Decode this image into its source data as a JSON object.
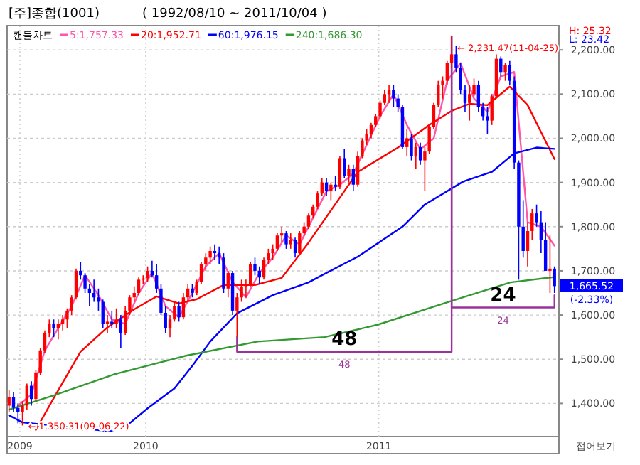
{
  "chart_data": {
    "type": "candlestick",
    "title": "[주]종합(1001)",
    "subtitle": "( 1992/08/10 ~ 2011/10/04 )",
    "legend_title": "캔들차트",
    "legend": "top left",
    "grid": true,
    "xlim": [
      "2009-05-29",
      "2011-10-10"
    ],
    "ylim": [
      1325,
      2255
    ],
    "xticks": [
      {
        "value": "2009-06-18",
        "label": "2009"
      },
      {
        "value": "2010-01-01",
        "label": "2010"
      },
      {
        "value": "2011-01-01",
        "label": "2011"
      }
    ],
    "yticks": [
      {
        "value": 1400,
        "label": "1,400.00"
      },
      {
        "value": 1500,
        "label": "1,500.00"
      },
      {
        "value": 1600,
        "label": "1,600.00"
      },
      {
        "value": 1700,
        "label": "1,700.00"
      },
      {
        "value": 1800,
        "label": "1,800.00"
      },
      {
        "value": 1900,
        "label": "1,900.00"
      },
      {
        "value": 2000,
        "label": "2,000.00"
      },
      {
        "value": 2100,
        "label": "2,100.00"
      },
      {
        "value": 2200,
        "label": "2,200.00"
      }
    ],
    "x": [
      "2009-06-01",
      "2009-06-08",
      "2009-06-15",
      "2009-06-22",
      "2009-06-29",
      "2009-07-06",
      "2009-07-13",
      "2009-07-20",
      "2009-07-27",
      "2009-08-03",
      "2009-08-10",
      "2009-08-17",
      "2009-08-24",
      "2009-08-31",
      "2009-09-07",
      "2009-09-14",
      "2009-09-21",
      "2009-09-28",
      "2009-10-05",
      "2009-10-12",
      "2009-10-19",
      "2009-10-26",
      "2009-11-02",
      "2009-11-09",
      "2009-11-16",
      "2009-11-23",
      "2009-11-30",
      "2009-12-07",
      "2009-12-14",
      "2009-12-21",
      "2009-12-28",
      "2010-01-04",
      "2010-01-11",
      "2010-01-18",
      "2010-01-25",
      "2010-02-01",
      "2010-02-08",
      "2010-02-15",
      "2010-02-22",
      "2010-03-01",
      "2010-03-08",
      "2010-03-15",
      "2010-03-22",
      "2010-03-29",
      "2010-04-05",
      "2010-04-12",
      "2010-04-19",
      "2010-04-26",
      "2010-05-03",
      "2010-05-10",
      "2010-05-17",
      "2010-05-24",
      "2010-05-31",
      "2010-06-07",
      "2010-06-14",
      "2010-06-21",
      "2010-06-28",
      "2010-07-05",
      "2010-07-12",
      "2010-07-19",
      "2010-07-26",
      "2010-08-02",
      "2010-08-09",
      "2010-08-16",
      "2010-08-23",
      "2010-08-30",
      "2010-09-06",
      "2010-09-13",
      "2010-09-20",
      "2010-09-27",
      "2010-10-04",
      "2010-10-11",
      "2010-10-18",
      "2010-10-25",
      "2010-11-01",
      "2010-11-08",
      "2010-11-15",
      "2010-11-22",
      "2010-11-29",
      "2010-12-06",
      "2010-12-13",
      "2010-12-20",
      "2010-12-27",
      "2011-01-03",
      "2011-01-10",
      "2011-01-17",
      "2011-01-24",
      "2011-01-31",
      "2011-02-07",
      "2011-02-14",
      "2011-02-21",
      "2011-02-28",
      "2011-03-07",
      "2011-03-14",
      "2011-03-21",
      "2011-03-28",
      "2011-04-04",
      "2011-04-11",
      "2011-04-18",
      "2011-04-25",
      "2011-05-02",
      "2011-05-09",
      "2011-05-16",
      "2011-05-23",
      "2011-05-30",
      "2011-06-06",
      "2011-06-13",
      "2011-06-20",
      "2011-06-27",
      "2011-07-04",
      "2011-07-11",
      "2011-07-18",
      "2011-07-25",
      "2011-08-01",
      "2011-08-08",
      "2011-08-15",
      "2011-08-22",
      "2011-08-29",
      "2011-09-05",
      "2011-09-12",
      "2011-09-19",
      "2011-09-26",
      "2011-10-03"
    ],
    "ohlc": [
      [
        1395,
        1430,
        1380,
        1415
      ],
      [
        1415,
        1425,
        1380,
        1390
      ],
      [
        1390,
        1400,
        1355,
        1380
      ],
      [
        1380,
        1405,
        1350,
        1395
      ],
      [
        1395,
        1445,
        1385,
        1440
      ],
      [
        1440,
        1450,
        1395,
        1410
      ],
      [
        1410,
        1475,
        1405,
        1470
      ],
      [
        1470,
        1525,
        1465,
        1520
      ],
      [
        1520,
        1565,
        1515,
        1560
      ],
      [
        1560,
        1590,
        1550,
        1580
      ],
      [
        1580,
        1590,
        1550,
        1570
      ],
      [
        1570,
        1590,
        1545,
        1580
      ],
      [
        1580,
        1600,
        1565,
        1590
      ],
      [
        1590,
        1615,
        1570,
        1610
      ],
      [
        1610,
        1645,
        1600,
        1640
      ],
      [
        1640,
        1705,
        1635,
        1700
      ],
      [
        1700,
        1720,
        1680,
        1690
      ],
      [
        1690,
        1695,
        1650,
        1660
      ],
      [
        1660,
        1670,
        1620,
        1650
      ],
      [
        1650,
        1680,
        1630,
        1640
      ],
      [
        1640,
        1660,
        1610,
        1630
      ],
      [
        1630,
        1635,
        1570,
        1580
      ],
      [
        1580,
        1600,
        1560,
        1585
      ],
      [
        1585,
        1610,
        1570,
        1580
      ],
      [
        1580,
        1615,
        1570,
        1590
      ],
      [
        1590,
        1600,
        1525,
        1560
      ],
      [
        1560,
        1620,
        1555,
        1610
      ],
      [
        1610,
        1645,
        1600,
        1640
      ],
      [
        1640,
        1665,
        1630,
        1650
      ],
      [
        1650,
        1685,
        1645,
        1680
      ],
      [
        1680,
        1690,
        1670,
        1683
      ],
      [
        1683,
        1710,
        1675,
        1700
      ],
      [
        1700,
        1723,
        1685,
        1690
      ],
      [
        1690,
        1715,
        1650,
        1660
      ],
      [
        1660,
        1670,
        1600,
        1605
      ],
      [
        1605,
        1620,
        1560,
        1570
      ],
      [
        1570,
        1600,
        1550,
        1590
      ],
      [
        1590,
        1630,
        1585,
        1620
      ],
      [
        1620,
        1630,
        1585,
        1595
      ],
      [
        1595,
        1650,
        1590,
        1640
      ],
      [
        1640,
        1670,
        1630,
        1660
      ],
      [
        1660,
        1670,
        1640,
        1650
      ],
      [
        1650,
        1680,
        1645,
        1675
      ],
      [
        1675,
        1720,
        1670,
        1715
      ],
      [
        1715,
        1740,
        1700,
        1730
      ],
      [
        1730,
        1755,
        1715,
        1745
      ],
      [
        1745,
        1760,
        1725,
        1740
      ],
      [
        1740,
        1755,
        1715,
        1730
      ],
      [
        1730,
        1740,
        1650,
        1660
      ],
      [
        1660,
        1700,
        1640,
        1695
      ],
      [
        1695,
        1700,
        1600,
        1610
      ],
      [
        1610,
        1650,
        1550,
        1640
      ],
      [
        1640,
        1680,
        1630,
        1665
      ],
      [
        1665,
        1680,
        1640,
        1670
      ],
      [
        1670,
        1720,
        1665,
        1715
      ],
      [
        1715,
        1730,
        1690,
        1700
      ],
      [
        1700,
        1710,
        1670,
        1685
      ],
      [
        1685,
        1730,
        1680,
        1725
      ],
      [
        1725,
        1750,
        1715,
        1740
      ],
      [
        1740,
        1760,
        1725,
        1750
      ],
      [
        1750,
        1785,
        1745,
        1780
      ],
      [
        1780,
        1800,
        1765,
        1785
      ],
      [
        1785,
        1790,
        1750,
        1760
      ],
      [
        1760,
        1785,
        1750,
        1770
      ],
      [
        1770,
        1775,
        1730,
        1740
      ],
      [
        1740,
        1790,
        1735,
        1785
      ],
      [
        1785,
        1810,
        1780,
        1800
      ],
      [
        1800,
        1830,
        1795,
        1825
      ],
      [
        1825,
        1850,
        1820,
        1845
      ],
      [
        1845,
        1880,
        1840,
        1875
      ],
      [
        1875,
        1910,
        1870,
        1900
      ],
      [
        1900,
        1910,
        1870,
        1880
      ],
      [
        1880,
        1900,
        1860,
        1895
      ],
      [
        1895,
        1915,
        1880,
        1890
      ],
      [
        1890,
        1960,
        1885,
        1955
      ],
      [
        1955,
        1975,
        1910,
        1915
      ],
      [
        1915,
        1940,
        1900,
        1930
      ],
      [
        1930,
        1940,
        1880,
        1895
      ],
      [
        1895,
        1970,
        1890,
        1960
      ],
      [
        1960,
        2000,
        1955,
        1995
      ],
      [
        1995,
        2020,
        1985,
        2010
      ],
      [
        2010,
        2035,
        2000,
        2030
      ],
      [
        2030,
        2055,
        2025,
        2050
      ],
      [
        2050,
        2085,
        2045,
        2080
      ],
      [
        2080,
        2110,
        2075,
        2100
      ],
      [
        2100,
        2120,
        2080,
        2110
      ],
      [
        2110,
        2120,
        2070,
        2090
      ],
      [
        2090,
        2100,
        2060,
        2070
      ],
      [
        2070,
        2075,
        1975,
        1980
      ],
      [
        1980,
        2020,
        1960,
        2000
      ],
      [
        2000,
        2010,
        1950,
        1960
      ],
      [
        1960,
        1990,
        1930,
        1980
      ],
      [
        1980,
        1990,
        1940,
        1950
      ],
      [
        1950,
        1980,
        1880,
        1970
      ],
      [
        1970,
        2030,
        1965,
        2025
      ],
      [
        2025,
        2080,
        2020,
        2075
      ],
      [
        2075,
        2130,
        2070,
        2120
      ],
      [
        2120,
        2140,
        2090,
        2130
      ],
      [
        2130,
        2175,
        2120,
        2170
      ],
      [
        2170,
        2231.47,
        2160,
        2190
      ],
      [
        2190,
        2210,
        2150,
        2160
      ],
      [
        2160,
        2170,
        2100,
        2110
      ],
      [
        2110,
        2120,
        2060,
        2080
      ],
      [
        2080,
        2120,
        2040,
        2100
      ],
      [
        2100,
        2135,
        2095,
        2120
      ],
      [
        2120,
        2130,
        2060,
        2070
      ],
      [
        2070,
        2080,
        2040,
        2050
      ],
      [
        2050,
        2070,
        2010,
        2040
      ],
      [
        2040,
        2100,
        2030,
        2095
      ],
      [
        2095,
        2190,
        2090,
        2180
      ],
      [
        2180,
        2185,
        2140,
        2150
      ],
      [
        2150,
        2170,
        2130,
        2165
      ],
      [
        2165,
        2175,
        2120,
        2130
      ],
      [
        2130,
        2140,
        1930,
        1945
      ],
      [
        1945,
        1950,
        1680,
        1800
      ],
      [
        1800,
        1860,
        1730,
        1745
      ],
      [
        1745,
        1810,
        1710,
        1790
      ],
      [
        1790,
        1840,
        1770,
        1830
      ],
      [
        1830,
        1850,
        1800,
        1810
      ],
      [
        1810,
        1835,
        1740,
        1770
      ],
      [
        1770,
        1810,
        1700,
        1700
      ],
      [
        1700,
        1780,
        1650,
        1705
      ],
      [
        1705,
        1710,
        1650,
        1665.52
      ]
    ],
    "series": [
      {
        "type": "line",
        "name": "5:1,757.33",
        "color": "#ff55aa",
        "x": [
          "2009-06-15",
          "2009-07-06",
          "2009-07-27",
          "2009-08-17",
          "2009-09-07",
          "2009-09-28",
          "2009-10-19",
          "2009-11-09",
          "2009-11-30",
          "2009-12-21",
          "2010-01-11",
          "2010-02-01",
          "2010-02-22",
          "2010-03-15",
          "2010-04-05",
          "2010-04-26",
          "2010-05-17",
          "2010-06-07",
          "2010-06-28",
          "2010-07-19",
          "2010-08-09",
          "2010-08-30",
          "2010-09-20",
          "2010-10-11",
          "2010-11-01",
          "2010-11-22",
          "2010-12-13",
          "2011-01-03",
          "2011-01-24",
          "2011-02-14",
          "2011-03-07",
          "2011-03-28",
          "2011-04-18",
          "2011-05-09",
          "2011-05-30",
          "2011-06-20",
          "2011-07-11",
          "2011-08-01",
          "2011-08-22",
          "2011-09-12",
          "2011-10-03"
        ],
        "values": [
          1395,
          1420,
          1520,
          1570,
          1620,
          1690,
          1645,
          1590,
          1580,
          1650,
          1695,
          1620,
          1595,
          1650,
          1710,
          1740,
          1675,
          1640,
          1695,
          1730,
          1780,
          1760,
          1820,
          1880,
          1895,
          1920,
          1985,
          2050,
          2100,
          2030,
          1975,
          2000,
          2130,
          2170,
          2090,
          2060,
          2140,
          2150,
          1810,
          1800,
          1757
        ]
      },
      {
        "type": "line",
        "name": "20:1,952.71",
        "color": "#ff0000",
        "x": [
          "2009-07-13",
          "2009-08-10",
          "2009-09-21",
          "2009-11-02",
          "2009-12-14",
          "2010-01-18",
          "2010-02-22",
          "2010-03-22",
          "2010-05-03",
          "2010-06-21",
          "2010-08-02",
          "2010-09-13",
          "2010-11-29",
          "2011-01-31",
          "2011-03-21",
          "2011-04-25",
          "2011-05-23",
          "2011-06-20",
          "2011-07-25",
          "2011-08-22",
          "2011-10-03"
        ],
        "values": [
          1340,
          1412,
          1517,
          1572,
          1613,
          1642,
          1626,
          1636,
          1668,
          1668,
          1684,
          1764,
          1924,
          1979,
          2030,
          2062,
          2078,
          2075,
          2117,
          2075,
          1953
        ]
      },
      {
        "type": "line",
        "name": "60:1,976.15",
        "color": "#0000ff",
        "x": [
          "2009-06-01",
          "2009-06-22",
          "2009-11-06",
          "2009-11-30",
          "2010-01-04",
          "2010-02-15",
          "2010-03-15",
          "2010-04-12",
          "2010-05-24",
          "2010-07-19",
          "2010-09-13",
          "2010-10-04",
          "2010-11-29",
          "2011-02-07",
          "2011-03-14",
          "2011-05-13",
          "2011-06-27",
          "2011-08-01",
          "2011-09-05",
          "2011-10-03"
        ],
        "values": [
          1373,
          1357,
          1337,
          1347,
          1389,
          1434,
          1485,
          1540,
          1604,
          1645,
          1674,
          1690,
          1732,
          1800,
          1850,
          1902,
          1924,
          1966,
          1979,
          1976
        ]
      },
      {
        "type": "line",
        "name": "240:1,686.30",
        "color": "#339933",
        "x": [
          "2009-06-01",
          "2009-08-10",
          "2009-11-13",
          "2010-03-05",
          "2010-06-25",
          "2010-10-08",
          "2010-12-30",
          "2011-04-21",
          "2011-07-26",
          "2011-10-03"
        ],
        "values": [
          1386,
          1418,
          1466,
          1508,
          1540,
          1550,
          1578,
          1630,
          1674,
          1686
        ]
      },
      {
        "type": "line",
        "color": "#993399",
        "x": [
          "2010-05-24",
          "2010-05-24",
          "2011-04-25",
          "2011-04-25"
        ],
        "values": [
          1550,
          1517,
          1517,
          2231
        ]
      },
      {
        "type": "line",
        "color": "#993399",
        "x": [
          "2011-04-25",
          "2011-04-25",
          "2011-10-03",
          "2011-10-03"
        ],
        "values": [
          2231,
          1617,
          1617,
          1645
        ]
      }
    ],
    "annotations": [
      {
        "text": "← 2,231.47(11-04-25)",
        "x": "2011-04-25",
        "y": 2231.47
      },
      {
        "text": "← 1,350.31(09-06-22)",
        "x": "2009-06-22",
        "y": 1350.31
      },
      "48",
      "48",
      "24",
      "24",
      "H: 25.32",
      "L: 23.42",
      "1,665.52",
      "(-2.33%)",
      "접어보기"
    ]
  }
}
